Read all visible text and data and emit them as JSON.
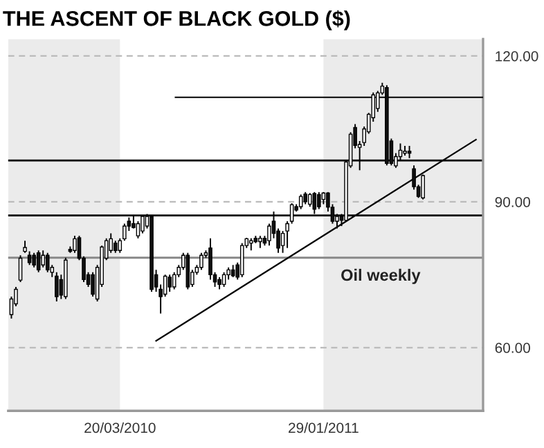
{
  "chart_data": {
    "type": "candlestick",
    "title": "THE ASCENT OF BLACK GOLD ($)",
    "annotations": [
      "Oil weekly"
    ],
    "x": [
      "2009-10-03",
      "2009-10-10",
      "2009-10-17",
      "2009-10-24",
      "2009-10-31",
      "2009-11-07",
      "2009-11-14",
      "2009-11-21",
      "2009-11-28",
      "2009-12-05",
      "2009-12-12",
      "2009-12-19",
      "2009-12-26",
      "2010-01-02",
      "2010-01-09",
      "2010-01-16",
      "2010-01-23",
      "2010-01-30",
      "2010-02-06",
      "2010-02-13",
      "2010-02-20",
      "2010-02-27",
      "2010-03-06",
      "2010-03-13",
      "2010-03-20",
      "2010-03-27",
      "2010-04-03",
      "2010-04-10",
      "2010-04-17",
      "2010-04-24",
      "2010-05-01",
      "2010-05-08",
      "2010-05-15",
      "2010-05-22",
      "2010-05-29",
      "2010-06-05",
      "2010-06-12",
      "2010-06-19",
      "2010-06-26",
      "2010-07-03",
      "2010-07-10",
      "2010-07-17",
      "2010-07-24",
      "2010-07-31",
      "2010-08-07",
      "2010-08-14",
      "2010-08-21",
      "2010-08-28",
      "2010-09-04",
      "2010-09-11",
      "2010-09-18",
      "2010-09-25",
      "2010-10-02",
      "2010-10-09",
      "2010-10-16",
      "2010-10-23",
      "2010-10-30",
      "2010-11-06",
      "2010-11-13",
      "2010-11-20",
      "2010-11-27",
      "2010-12-04",
      "2010-12-11",
      "2010-12-18",
      "2010-12-25",
      "2011-01-01",
      "2011-01-08",
      "2011-01-15",
      "2011-01-22",
      "2011-01-29",
      "2011-02-05",
      "2011-02-12",
      "2011-02-19",
      "2011-02-26",
      "2011-03-05",
      "2011-03-12",
      "2011-03-19",
      "2011-03-26",
      "2011-04-02",
      "2011-04-09",
      "2011-04-16",
      "2011-04-23",
      "2011-04-30",
      "2011-05-07",
      "2011-05-14",
      "2011-05-21",
      "2011-05-28",
      "2011-06-04",
      "2011-06-11",
      "2011-06-18",
      "2011-06-25",
      "2011-07-02"
    ],
    "ohlc": [
      [
        66.8,
        70.5,
        66,
        70
      ],
      [
        69,
        72.5,
        68.5,
        72
      ],
      [
        73.9,
        79,
        73.5,
        78.4
      ],
      [
        79.8,
        82,
        79.5,
        80.6
      ],
      [
        79,
        79.8,
        77,
        77.5
      ],
      [
        79,
        79.5,
        76.5,
        77
      ],
      [
        79.5,
        80,
        75.5,
        76
      ],
      [
        77,
        80,
        76.5,
        79
      ],
      [
        79,
        79.5,
        75.5,
        76
      ],
      [
        75.5,
        77,
        74.5,
        76.5
      ],
      [
        74.7,
        75.5,
        69.5,
        70.5
      ],
      [
        74,
        75,
        70,
        70.8
      ],
      [
        70.5,
        78.5,
        70,
        78
      ],
      [
        80.2,
        80.8,
        79.5,
        79.8
      ],
      [
        80,
        83,
        79.5,
        82.4
      ],
      [
        82.6,
        83,
        78,
        78.4
      ],
      [
        78.4,
        78.8,
        73.5,
        74
      ],
      [
        75,
        75.5,
        72.5,
        73
      ],
      [
        75,
        75.5,
        70.5,
        71
      ],
      [
        70,
        77,
        69.5,
        76.5
      ],
      [
        73,
        81,
        72.5,
        80.7
      ],
      [
        78.4,
        82.5,
        78,
        82
      ],
      [
        80,
        83.5,
        79.5,
        82.4
      ],
      [
        81.5,
        82,
        79.5,
        80
      ],
      [
        80,
        82.5,
        79.5,
        82
      ],
      [
        82.4,
        85.5,
        82,
        85
      ],
      [
        86,
        86.8,
        84,
        85
      ],
      [
        85.5,
        87,
        84.5,
        84.7
      ],
      [
        83,
        86,
        82.5,
        85.5
      ],
      [
        84,
        87.3,
        83.5,
        87
      ],
      [
        85,
        87.5,
        84.5,
        87
      ],
      [
        86.9,
        87.3,
        71.5,
        72
      ],
      [
        75,
        76,
        71.5,
        72.5
      ],
      [
        72,
        73,
        67,
        70.5
      ],
      [
        71,
        75,
        70.5,
        74.7
      ],
      [
        74.5,
        75,
        71.5,
        72.5
      ],
      [
        72.5,
        75.5,
        72,
        75
      ],
      [
        75,
        77,
        74.5,
        76.5
      ],
      [
        76.5,
        79.5,
        76,
        79
      ],
      [
        79,
        79.5,
        72,
        72.5
      ],
      [
        73,
        76,
        72.5,
        75.5
      ],
      [
        75.5,
        77,
        75,
        76.5
      ],
      [
        76.5,
        79.5,
        76,
        79
      ],
      [
        79,
        80,
        78.5,
        79.5
      ],
      [
        80.5,
        82.5,
        74,
        75
      ],
      [
        75,
        75.5,
        72.5,
        73.5
      ],
      [
        74,
        74.5,
        72,
        73
      ],
      [
        73,
        75.5,
        72.5,
        75
      ],
      [
        75,
        76.5,
        74,
        76
      ],
      [
        76,
        77,
        74.5,
        74.8
      ],
      [
        77,
        77.5,
        74,
        74.5
      ],
      [
        75,
        81.5,
        74.5,
        81
      ],
      [
        81,
        82.6,
        80.5,
        82.4
      ],
      [
        81.5,
        82.5,
        80,
        82
      ],
      [
        82.5,
        83,
        81.5,
        81.8
      ],
      [
        81.8,
        83,
        80.5,
        82.5
      ],
      [
        82.5,
        83,
        81,
        81.5
      ],
      [
        82,
        85.5,
        81,
        85
      ],
      [
        86,
        88,
        82.5,
        83.5
      ],
      [
        84,
        84.5,
        79.5,
        80.5
      ],
      [
        81,
        84,
        79.5,
        83.5
      ],
      [
        84,
        86,
        80.5,
        85.5
      ],
      [
        86,
        89.7,
        85.5,
        89.4
      ],
      [
        89,
        89.5,
        88,
        88.3
      ],
      [
        89,
        91.5,
        88.5,
        91.1
      ],
      [
        91.6,
        92,
        89.5,
        90
      ],
      [
        89.5,
        91.8,
        89,
        91.5
      ],
      [
        91.7,
        92,
        87.5,
        88.5
      ],
      [
        91.5,
        92,
        88.5,
        89
      ],
      [
        90.5,
        92,
        89.5,
        91.8
      ],
      [
        91.8,
        92,
        88,
        88.9
      ],
      [
        88.9,
        89.5,
        85.5,
        86
      ],
      [
        86,
        87.5,
        84.5,
        87
      ],
      [
        87,
        87.5,
        85,
        86.2
      ],
      [
        86.2,
        98.5,
        86,
        98.2
      ],
      [
        97.4,
        104.3,
        97,
        103.9
      ],
      [
        105.3,
        106,
        101,
        101.6
      ],
      [
        101.2,
        102.5,
        96.5,
        101.8
      ],
      [
        102.2,
        105.5,
        101.5,
        105
      ],
      [
        104.4,
        108.3,
        104,
        108
      ],
      [
        107.3,
        112.5,
        106.5,
        112
      ],
      [
        109.2,
        112.8,
        108.5,
        112.4
      ],
      [
        112.4,
        114.5,
        112,
        113.8
      ],
      [
        113.5,
        114,
        97.5,
        97.9
      ],
      [
        102.5,
        103,
        97.5,
        97.9
      ],
      [
        97.4,
        100,
        97,
        99.3
      ],
      [
        99.3,
        102,
        98.5,
        100.6
      ],
      [
        100,
        101.5,
        99.5,
        100.4
      ],
      [
        100.4,
        101.5,
        99,
        100
      ],
      [
        96.8,
        97.5,
        92.5,
        93.1
      ],
      [
        93.1,
        93.5,
        90.8,
        91.1
      ],
      [
        90.8,
        95.6,
        90.5,
        95.4
      ]
    ],
    "series": [
      {
        "type": "line",
        "x": [
          "2010-05-15",
          "2011-09-22"
        ],
        "values": [
          61.4,
          102.8
        ],
        "color": "#000000"
      },
      {
        "type": "line",
        "x": [
          "2010-06-14",
          "2011-10-03"
        ],
        "values": [
          111.5,
          111.5
        ],
        "color": "#000000"
      }
    ],
    "ref_lines": [
      {
        "axis": "y",
        "value": 98.5,
        "color": "#000000"
      },
      {
        "axis": "y",
        "value": 87.2,
        "color": "#000000"
      },
      {
        "axis": "y",
        "value": 78.5,
        "color": "#888888"
      }
    ],
    "bands": [
      {
        "axis": "x",
        "from": "2009-09-28",
        "to": "2010-03-20",
        "color": "#ebebeb"
      },
      {
        "axis": "x",
        "from": "2011-01-29",
        "to": "2011-10-03",
        "color": "#ebebeb"
      }
    ],
    "xlim": [
      "2009-09-28",
      "2011-10-03"
    ],
    "xticks": [
      {
        "value": "2010-03-20",
        "label": "20/03/2010"
      },
      {
        "value": "2011-01-29",
        "label": "29/01/2011"
      }
    ],
    "ylim": [
      47,
      123.5
    ],
    "yticks": [
      {
        "value": 60,
        "label": "60.00"
      },
      {
        "value": 90,
        "label": "90.00"
      },
      {
        "value": 120,
        "label": "120.00"
      }
    ],
    "grid": "y",
    "legend": false
  }
}
